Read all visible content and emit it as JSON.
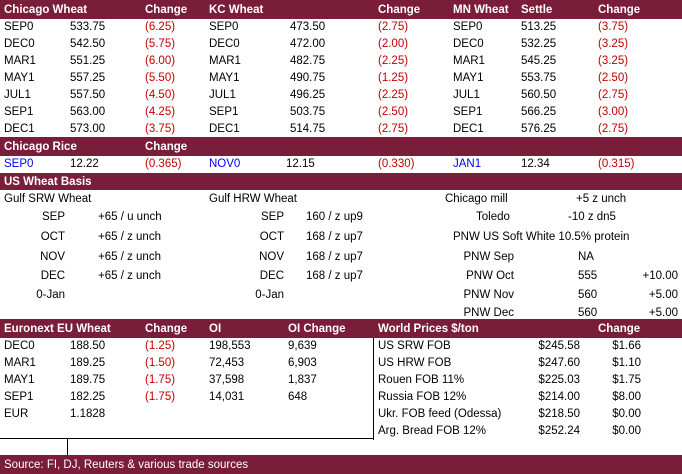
{
  "header": {
    "chicago_wheat": "Chicago Wheat",
    "change1": "Change",
    "kc_wheat": "KC Wheat",
    "change2": "Change",
    "mn_wheat": "MN Wheat",
    "settle": "Settle",
    "change3": "Change"
  },
  "wheat_rows": [
    {
      "c_month": "SEP0",
      "c_price": "533.75",
      "c_chg": "(6.25)",
      "k_month": "SEP0",
      "k_price": "473.50",
      "k_chg": "(2.75)",
      "m_month": "SEP0",
      "m_price": "513.25",
      "m_chg": "(3.75)"
    },
    {
      "c_month": "DEC0",
      "c_price": "542.50",
      "c_chg": "(5.75)",
      "k_month": "DEC0",
      "k_price": "472.00",
      "k_chg": "(2.00)",
      "m_month": "DEC0",
      "m_price": "532.25",
      "m_chg": "(3.25)"
    },
    {
      "c_month": "MAR1",
      "c_price": "551.25",
      "c_chg": "(6.00)",
      "k_month": "MAR1",
      "k_price": "482.75",
      "k_chg": "(2.25)",
      "m_month": "MAR1",
      "m_price": "545.25",
      "m_chg": "(3.25)"
    },
    {
      "c_month": "MAY1",
      "c_price": "557.25",
      "c_chg": "(5.50)",
      "k_month": "MAY1",
      "k_price": "490.75",
      "k_chg": "(1.25)",
      "m_month": "MAY1",
      "m_price": "553.75",
      "m_chg": "(2.50)"
    },
    {
      "c_month": "JUL1",
      "c_price": "557.50",
      "c_chg": "(4.50)",
      "k_month": "JUL1",
      "k_price": "496.25",
      "k_chg": "(2.25)",
      "m_month": "JUL1",
      "m_price": "560.50",
      "m_chg": "(2.75)"
    },
    {
      "c_month": "SEP1",
      "c_price": "563.00",
      "c_chg": "(4.25)",
      "k_month": "SEP1",
      "k_price": "503.75",
      "k_chg": "(2.50)",
      "m_month": "SEP1",
      "m_price": "566.25",
      "m_chg": "(3.00)"
    },
    {
      "c_month": "DEC1",
      "c_price": "573.00",
      "c_chg": "(3.75)",
      "k_month": "DEC1",
      "k_price": "514.75",
      "k_chg": "(2.75)",
      "m_month": "DEC1",
      "m_price": "576.25",
      "m_chg": "(2.75)"
    }
  ],
  "rice": {
    "title": "Chicago Rice",
    "change": "Change",
    "m1": "SEP0",
    "p1": "12.22",
    "c1": "(0.365)",
    "m2": "NOV0",
    "p2": "12.15",
    "c2": "(0.330)",
    "m3": "JAN1",
    "p3": "12.34",
    "c3": "(0.315)"
  },
  "basis": {
    "title": "US Wheat Basis",
    "srw_title": "Gulf SRW Wheat",
    "hrw_title": "Gulf HRW Wheat",
    "srw": [
      {
        "m": "SEP",
        "v": "+65 / u  unch"
      },
      {
        "m": "OCT",
        "v": "+65 / z  unch"
      },
      {
        "m": "NOV",
        "v": "+65 / z  unch"
      },
      {
        "m": "DEC",
        "v": "+65 / z  unch"
      },
      {
        "m": "0-Jan",
        "v": ""
      }
    ],
    "hrw": [
      {
        "m": "SEP",
        "v": "160 / z  up9"
      },
      {
        "m": "OCT",
        "v": "168 / z  up7"
      },
      {
        "m": "NOV",
        "v": "168 / z  up7"
      },
      {
        "m": "DEC",
        "v": "168 / z  up7"
      },
      {
        "m": "0-Jan",
        "v": ""
      }
    ],
    "chicago_mill_label": "Chicago mill",
    "chicago_mill_value": "+5 z unch",
    "toledo_label": "Toledo",
    "toledo_value": "-10 z dn5",
    "pnw_title": "PNW US Soft White 10.5% protein",
    "pnw": [
      {
        "m": "PNW Sep",
        "p": "NA",
        "c": ""
      },
      {
        "m": "PNW Oct",
        "p": "555",
        "c": "+10.00"
      },
      {
        "m": "PNW Nov",
        "p": "560",
        "c": "+5.00"
      },
      {
        "m": "PNW Dec",
        "p": "560",
        "c": "+5.00"
      }
    ]
  },
  "euronext": {
    "title": "Euronext EU Wheat",
    "change": "Change",
    "oi": "OI",
    "oi_change": "OI Change",
    "rows": [
      {
        "m": "DEC0",
        "p": "188.50",
        "c": "(1.25)",
        "oi": "198,553",
        "oic": "9,639"
      },
      {
        "m": "MAR1",
        "p": "189.25",
        "c": "(1.50)",
        "oi": "72,453",
        "oic": "6,903"
      },
      {
        "m": "MAY1",
        "p": "189.75",
        "c": "(1.75)",
        "oi": "37,598",
        "oic": "1,837"
      },
      {
        "m": "SEP1",
        "p": "182.25",
        "c": "(1.75)",
        "oi": "14,031",
        "oic": "648"
      }
    ],
    "eur_label": "EUR",
    "eur_value": "1.1828"
  },
  "world": {
    "title": "World Prices $/ton",
    "change": "Change",
    "rows": [
      {
        "n": "US SRW FOB",
        "p": "$245.58",
        "c": "$1.66"
      },
      {
        "n": "US HRW FOB",
        "p": "$247.60",
        "c": "$1.10"
      },
      {
        "n": "Rouen FOB 11%",
        "p": "$225.03",
        "c": "$1.75"
      },
      {
        "n": "Russia FOB 12%",
        "p": "$214.00",
        "c": "$8.00"
      },
      {
        "n": "Ukr. FOB feed (Odessa)",
        "p": "$218.50",
        "c": "$0.00"
      },
      {
        "n": "Arg. Bread FOB 12%",
        "p": "$252.24",
        "c": "$0.00"
      }
    ]
  },
  "source": "Source: FI, DJ, Reuters & various trade sources",
  "colors": {
    "band": "#7a1d3a",
    "negative": "#c00000",
    "rice_month": "#0000ff"
  }
}
